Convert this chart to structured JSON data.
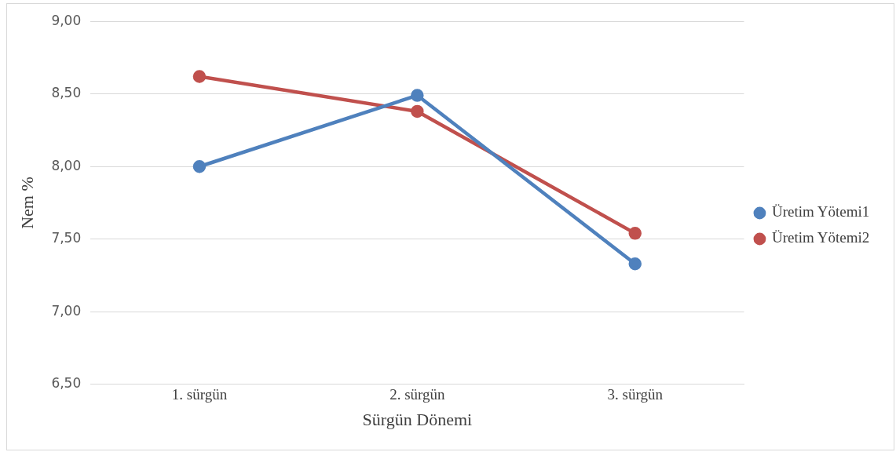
{
  "chart_data": {
    "type": "line",
    "xlabel": "Sürgün Dönemi",
    "ylabel": "Nem %",
    "categories": [
      "1. sürgün",
      "2. sürgün",
      "3. sürgün"
    ],
    "series": [
      {
        "name": "Üretim Yötemi1",
        "color": "#4f81bd",
        "values": [
          8.0,
          8.49,
          7.33
        ]
      },
      {
        "name": "Üretim Yötemi2",
        "color": "#c0504d",
        "values": [
          8.62,
          8.38,
          7.54
        ]
      }
    ],
    "ylim": [
      6.5,
      9.0
    ],
    "yticks": [
      {
        "value": 6.5,
        "label": "6,50"
      },
      {
        "value": 7.0,
        "label": "7,00"
      },
      {
        "value": 7.5,
        "label": "7,50"
      },
      {
        "value": 8.0,
        "label": "8,00"
      },
      {
        "value": 8.5,
        "label": "8,50"
      },
      {
        "value": 9.0,
        "label": "9,00"
      }
    ],
    "grid": "y",
    "legend": "right",
    "marker": "circle",
    "line_style": "solid"
  }
}
